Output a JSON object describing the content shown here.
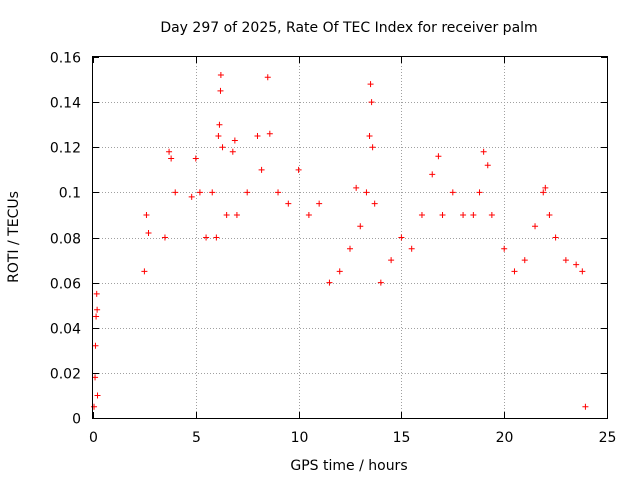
{
  "chart_data": {
    "type": "scatter",
    "title": "Day 297 of 2025, Rate Of TEC Index for receiver palm",
    "xlabel": "GPS time / hours",
    "ylabel": "ROTI / TECUs",
    "xlim": [
      0,
      25
    ],
    "ylim": [
      0,
      0.16
    ],
    "x_ticks": [
      "0",
      "5",
      "10",
      "15",
      "20",
      "25"
    ],
    "y_ticks": [
      "0",
      "0.02",
      "0.04",
      "0.06",
      "0.08",
      "0.1",
      "0.12",
      "0.14",
      "0.16"
    ],
    "grid": true,
    "marker": "plus",
    "color": "#ff0000",
    "series": [
      {
        "points": [
          [
            0.05,
            0.005
          ],
          [
            0.1,
            0.018
          ],
          [
            0.12,
            0.032
          ],
          [
            0.15,
            0.045
          ],
          [
            0.18,
            0.055
          ],
          [
            0.2,
            0.048
          ],
          [
            0.22,
            0.01
          ],
          [
            2.5,
            0.065
          ],
          [
            2.6,
            0.09
          ],
          [
            2.7,
            0.082
          ],
          [
            3.5,
            0.08
          ],
          [
            3.7,
            0.118
          ],
          [
            3.8,
            0.115
          ],
          [
            4.0,
            0.1
          ],
          [
            4.8,
            0.098
          ],
          [
            5.0,
            0.115
          ],
          [
            5.2,
            0.1
          ],
          [
            5.5,
            0.08
          ],
          [
            5.8,
            0.1
          ],
          [
            6.0,
            0.08
          ],
          [
            6.1,
            0.125
          ],
          [
            6.15,
            0.13
          ],
          [
            6.2,
            0.145
          ],
          [
            6.22,
            0.152
          ],
          [
            6.3,
            0.12
          ],
          [
            6.5,
            0.09
          ],
          [
            6.8,
            0.118
          ],
          [
            6.9,
            0.123
          ],
          [
            7.0,
            0.09
          ],
          [
            7.5,
            0.1
          ],
          [
            8.0,
            0.125
          ],
          [
            8.2,
            0.11
          ],
          [
            8.5,
            0.151
          ],
          [
            8.6,
            0.126
          ],
          [
            9.0,
            0.1
          ],
          [
            9.5,
            0.095
          ],
          [
            10.0,
            0.11
          ],
          [
            10.5,
            0.09
          ],
          [
            11.0,
            0.095
          ],
          [
            11.5,
            0.06
          ],
          [
            12.0,
            0.065
          ],
          [
            12.5,
            0.075
          ],
          [
            12.8,
            0.102
          ],
          [
            13.0,
            0.085
          ],
          [
            13.3,
            0.1
          ],
          [
            13.45,
            0.125
          ],
          [
            13.5,
            0.148
          ],
          [
            13.55,
            0.14
          ],
          [
            13.6,
            0.12
          ],
          [
            13.7,
            0.095
          ],
          [
            14.0,
            0.06
          ],
          [
            14.5,
            0.07
          ],
          [
            15.0,
            0.08
          ],
          [
            15.5,
            0.075
          ],
          [
            16.0,
            0.09
          ],
          [
            16.5,
            0.108
          ],
          [
            16.8,
            0.116
          ],
          [
            17.0,
            0.09
          ],
          [
            17.5,
            0.1
          ],
          [
            18.0,
            0.09
          ],
          [
            18.5,
            0.09
          ],
          [
            18.8,
            0.1
          ],
          [
            19.0,
            0.118
          ],
          [
            19.2,
            0.112
          ],
          [
            19.4,
            0.09
          ],
          [
            20.0,
            0.075
          ],
          [
            20.5,
            0.065
          ],
          [
            21.0,
            0.07
          ],
          [
            21.5,
            0.085
          ],
          [
            21.9,
            0.1
          ],
          [
            22.0,
            0.102
          ],
          [
            22.2,
            0.09
          ],
          [
            22.5,
            0.08
          ],
          [
            23.0,
            0.07
          ],
          [
            23.5,
            0.068
          ],
          [
            23.8,
            0.065
          ],
          [
            23.95,
            0.005
          ]
        ]
      }
    ]
  }
}
